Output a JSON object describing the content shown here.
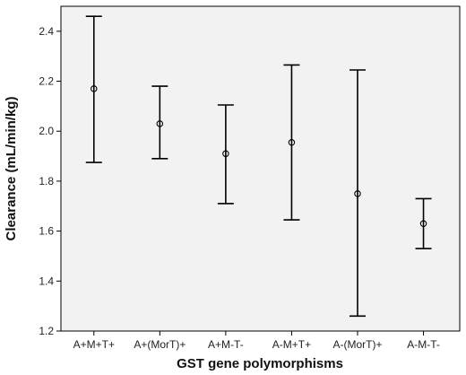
{
  "chart_data": {
    "type": "errorbar",
    "title": "",
    "xlabel": "GST gene polymorphisms",
    "ylabel": "Clearance (mL/min/kg)",
    "ylim": [
      1.2,
      2.5
    ],
    "yticks": [
      1.2,
      1.4,
      1.6,
      1.8,
      2.0,
      2.2,
      2.4
    ],
    "ytick_labels": [
      "1.2",
      "1.4",
      "1.6",
      "1.8",
      "2.0",
      "2.2",
      "2.4"
    ],
    "categories": [
      "A+M+T+",
      "A+(MorT)+",
      "A+M-T-",
      "A-M+T+",
      "A-(MorT)+",
      "A-M-T-"
    ],
    "means": [
      2.17,
      2.03,
      1.91,
      1.955,
      1.75,
      1.63
    ],
    "lower": [
      1.875,
      1.89,
      1.71,
      1.645,
      1.26,
      1.53
    ],
    "upper": [
      2.46,
      2.18,
      2.105,
      2.265,
      2.245,
      1.73
    ],
    "grid": false,
    "legend": "none",
    "colors": {
      "plot_background": "#f2f2f2",
      "page_background": "#ffffff",
      "marks": "#000000"
    }
  }
}
